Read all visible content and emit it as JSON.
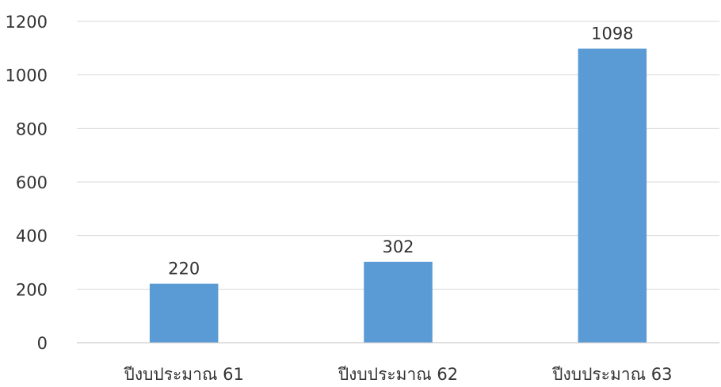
{
  "chart_data": {
    "type": "bar",
    "title": "",
    "xlabel": "",
    "ylabel": "",
    "categories": [
      "ปีงบประมาณ 61",
      "ปีงบประมาณ 62",
      "ปีงบประมาณ 63"
    ],
    "values": [
      220,
      302,
      1098
    ],
    "data_labels": [
      "220",
      "302",
      "1098"
    ],
    "y_ticks": [
      "0",
      "200",
      "400",
      "600",
      "800",
      "1000",
      "1200"
    ],
    "ylim": [
      0,
      1200
    ],
    "grid": true,
    "legend": "none",
    "colors": {
      "bar": "#5b9bd5",
      "grid": "#d9d9d9",
      "axis": "#bfbfbf",
      "text": "#333333"
    }
  }
}
